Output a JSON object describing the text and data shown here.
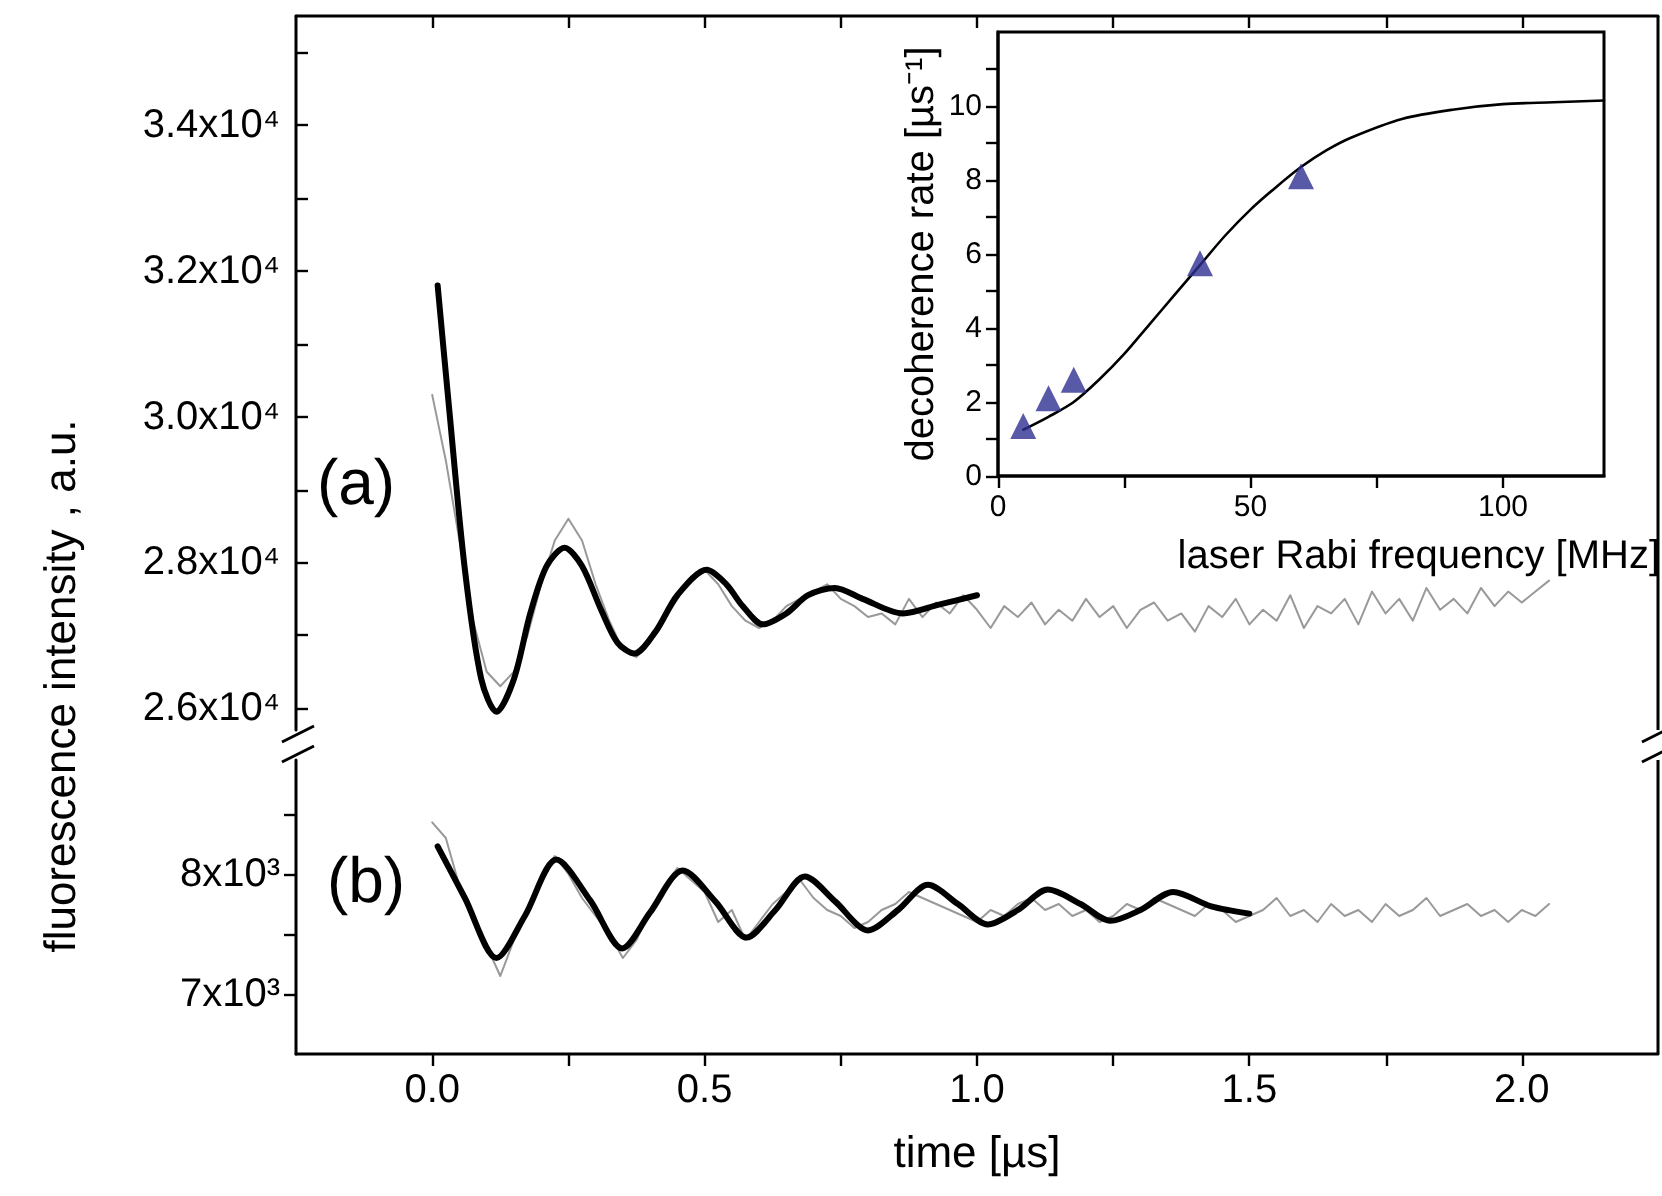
{
  "chart_data": [
    {
      "type": "line",
      "ylabel": "fluorescence intensity , a.u.",
      "annotations": [
        "(a)"
      ],
      "tick_labels": "y",
      "marker": "none",
      "line_style": "solid",
      "xlim": [
        -0.25,
        2.25
      ],
      "ylim": [
        25700,
        35500
      ],
      "xticks": [
        {
          "value": 0,
          "label": null
        },
        {
          "value": 0.25,
          "label": null
        },
        {
          "value": 0.5,
          "label": null
        },
        {
          "value": 0.75,
          "label": null
        },
        {
          "value": 1,
          "label": null
        },
        {
          "value": 1.25,
          "label": null
        },
        {
          "value": 1.5,
          "label": null
        },
        {
          "value": 1.75,
          "label": null
        },
        {
          "value": 2,
          "label": null
        }
      ],
      "yticks": [
        {
          "value": 26000,
          "label": "2.6x10⁴"
        },
        {
          "value": 27000,
          "label": null
        },
        {
          "value": 28000,
          "label": "2.8x10⁴"
        },
        {
          "value": 29000,
          "label": null
        },
        {
          "value": 30000,
          "label": "3.0x10⁴"
        },
        {
          "value": 31000,
          "label": null
        },
        {
          "value": 32000,
          "label": "3.2x10⁴"
        },
        {
          "value": 33000,
          "label": null
        },
        {
          "value": 34000,
          "label": "3.4x10⁴"
        },
        {
          "value": 35000,
          "label": null
        }
      ],
      "series": [
        {
          "color": "#999999",
          "x": [
            0,
            0.025,
            0.05,
            0.075,
            0.1,
            0.125,
            0.15,
            0.175,
            0.2,
            0.225,
            0.25,
            0.275,
            0.3,
            0.325,
            0.35,
            0.375,
            0.4,
            0.425,
            0.45,
            0.475,
            0.5,
            0.525,
            0.55,
            0.575,
            0.6,
            0.625,
            0.65,
            0.675,
            0.7,
            0.725,
            0.75,
            0.775,
            0.8,
            0.825,
            0.85,
            0.875,
            0.9,
            0.925,
            0.95,
            0.975,
            1,
            1.025,
            1.05,
            1.075,
            1.1,
            1.125,
            1.15,
            1.175,
            1.2,
            1.225,
            1.25,
            1.275,
            1.3,
            1.325,
            1.35,
            1.375,
            1.4,
            1.425,
            1.45,
            1.475,
            1.5,
            1.525,
            1.55,
            1.575,
            1.6,
            1.625,
            1.65,
            1.675,
            1.7,
            1.725,
            1.75,
            1.775,
            1.8,
            1.825,
            1.85,
            1.875,
            1.9,
            1.925,
            1.95,
            1.975,
            2,
            2.025,
            2.05
          ],
          "values": [
            30300,
            29400,
            28300,
            27200,
            26500,
            26300,
            26500,
            27000,
            27700,
            28300,
            28600,
            28300,
            27700,
            27200,
            26800,
            26700,
            26900,
            27200,
            27500,
            27800,
            27900,
            27700,
            27400,
            27200,
            27100,
            27200,
            27400,
            27500,
            27600,
            27700,
            27500,
            27400,
            27250,
            27300,
            27150,
            27500,
            27250,
            27450,
            27300,
            27550,
            27350,
            27100,
            27400,
            27250,
            27450,
            27150,
            27350,
            27200,
            27500,
            27250,
            27400,
            27100,
            27350,
            27450,
            27200,
            27300,
            27050,
            27400,
            27250,
            27500,
            27150,
            27350,
            27200,
            27550,
            27100,
            27400,
            27300,
            27500,
            27150,
            27600,
            27300,
            27500,
            27200,
            27650,
            27350,
            27500,
            27300,
            27650,
            27400,
            27600,
            27450,
            27600,
            27750
          ]
        },
        {
          "color": "#000000",
          "x": [
            0.01,
            0.03,
            0.06,
            0.09,
            0.118,
            0.15,
            0.18,
            0.21,
            0.243,
            0.275,
            0.31,
            0.34,
            0.371,
            0.41,
            0.45,
            0.504,
            0.54,
            0.57,
            0.607,
            0.65,
            0.69,
            0.739,
            0.79,
            0.864,
            0.93,
            1
          ],
          "values": [
            31800,
            30200,
            27900,
            26400,
            25950,
            26400,
            27300,
            27950,
            28200,
            27950,
            27350,
            26900,
            26750,
            27050,
            27550,
            27900,
            27700,
            27400,
            27150,
            27300,
            27550,
            27650,
            27500,
            27300,
            27420,
            27550
          ]
        }
      ]
    },
    {
      "type": "line",
      "xlabel": "time [µs]",
      "annotations": [
        "(b)"
      ],
      "marker": "none",
      "line_style": "solid",
      "xlim": [
        -0.25,
        2.25
      ],
      "ylim": [
        6500,
        8950
      ],
      "xticks": [
        {
          "value": 0,
          "label": "0.0"
        },
        {
          "value": 0.25,
          "label": null
        },
        {
          "value": 0.5,
          "label": "0.5"
        },
        {
          "value": 0.75,
          "label": null
        },
        {
          "value": 1,
          "label": "1.0"
        },
        {
          "value": 1.25,
          "label": null
        },
        {
          "value": 1.5,
          "label": "1.5"
        },
        {
          "value": 1.75,
          "label": null
        },
        {
          "value": 2,
          "label": "2.0"
        }
      ],
      "yticks": [
        {
          "value": 7000,
          "label": "7x10³"
        },
        {
          "value": 7500,
          "label": null
        },
        {
          "value": 8000,
          "label": "8x10³"
        },
        {
          "value": 8500,
          "label": null
        }
      ],
      "series": [
        {
          "color": "#999999",
          "x": [
            0,
            0.025,
            0.05,
            0.075,
            0.1,
            0.125,
            0.15,
            0.175,
            0.2,
            0.225,
            0.25,
            0.275,
            0.3,
            0.325,
            0.35,
            0.375,
            0.4,
            0.425,
            0.45,
            0.475,
            0.5,
            0.525,
            0.55,
            0.575,
            0.6,
            0.625,
            0.65,
            0.675,
            0.7,
            0.725,
            0.75,
            0.775,
            0.8,
            0.825,
            0.85,
            0.875,
            0.9,
            0.925,
            0.95,
            0.975,
            1,
            1.025,
            1.05,
            1.075,
            1.1,
            1.125,
            1.15,
            1.175,
            1.2,
            1.225,
            1.25,
            1.275,
            1.3,
            1.325,
            1.35,
            1.375,
            1.4,
            1.425,
            1.45,
            1.475,
            1.5,
            1.525,
            1.55,
            1.575,
            1.6,
            1.625,
            1.65,
            1.675,
            1.7,
            1.725,
            1.75,
            1.775,
            1.8,
            1.825,
            1.85,
            1.875,
            1.9,
            1.925,
            1.95,
            1.975,
            2,
            2.025,
            2.05
          ],
          "values": [
            8430,
            8300,
            7900,
            7600,
            7400,
            7150,
            7450,
            7700,
            7950,
            8150,
            8000,
            7800,
            7650,
            7500,
            7300,
            7450,
            7700,
            7900,
            8050,
            7950,
            7850,
            7600,
            7700,
            7450,
            7600,
            7750,
            7850,
            7950,
            7800,
            7700,
            7650,
            7550,
            7600,
            7700,
            7750,
            7850,
            7800,
            7750,
            7700,
            7650,
            7600,
            7700,
            7650,
            7750,
            7800,
            7700,
            7750,
            7650,
            7700,
            7600,
            7650,
            7750,
            7700,
            7800,
            7750,
            7700,
            7650,
            7750,
            7700,
            7600,
            7650,
            7700,
            7800,
            7650,
            7700,
            7600,
            7750,
            7650,
            7700,
            7600,
            7750,
            7650,
            7700,
            7800,
            7650,
            7700,
            7750,
            7650,
            7700,
            7600,
            7700,
            7650,
            7750
          ]
        },
        {
          "color": "#000000",
          "x": [
            0.01,
            0.06,
            0.118,
            0.17,
            0.228,
            0.29,
            0.349,
            0.4,
            0.46,
            0.52,
            0.577,
            0.63,
            0.684,
            0.74,
            0.8,
            0.855,
            0.91,
            0.965,
            1.02,
            1.075,
            1.13,
            1.19,
            1.245,
            1.3,
            1.36,
            1.43,
            1.5
          ],
          "values": [
            8230,
            7800,
            7300,
            7650,
            8120,
            7780,
            7380,
            7680,
            8030,
            7770,
            7470,
            7700,
            7980,
            7770,
            7530,
            7700,
            7910,
            7750,
            7580,
            7700,
            7870,
            7750,
            7610,
            7700,
            7850,
            7730,
            7670
          ]
        }
      ]
    },
    {
      "type": "scatter",
      "xlabel": "laser Rabi frequency [MHz]",
      "ylabel": "decoherence rate [µs⁻¹]",
      "xlim": [
        0,
        120
      ],
      "ylim": [
        0,
        12
      ],
      "xticks": [
        0,
        {
          "value": 25,
          "label": null
        },
        50,
        {
          "value": 75,
          "label": null
        },
        100
      ],
      "yticks": [
        0,
        {
          "value": 1,
          "label": null
        },
        2,
        {
          "value": 3,
          "label": null
        },
        4,
        {
          "value": 5,
          "label": null
        },
        6,
        {
          "value": 7,
          "label": null
        },
        8,
        {
          "value": 9,
          "label": null
        },
        10,
        {
          "value": 11,
          "label": null
        }
      ],
      "series": [
        {
          "type": "line",
          "color": "#000000",
          "marker": "none",
          "line_style": "solid",
          "x": [
            5,
            10,
            15,
            20,
            25,
            30,
            35,
            40,
            45,
            50,
            55,
            60,
            65,
            70,
            80,
            90,
            100,
            110,
            120
          ],
          "values": [
            1.25,
            1.6,
            2.0,
            2.6,
            3.3,
            4.1,
            4.9,
            5.7,
            6.5,
            7.2,
            7.8,
            8.35,
            8.8,
            9.15,
            9.65,
            9.9,
            10.05,
            10.1,
            10.15
          ]
        },
        {
          "color": "#2e3192",
          "marker": "triangle",
          "x": [
            5,
            10,
            15,
            40,
            60
          ],
          "values": [
            1.35,
            2.1,
            2.6,
            5.75,
            8.1
          ]
        }
      ]
    }
  ]
}
